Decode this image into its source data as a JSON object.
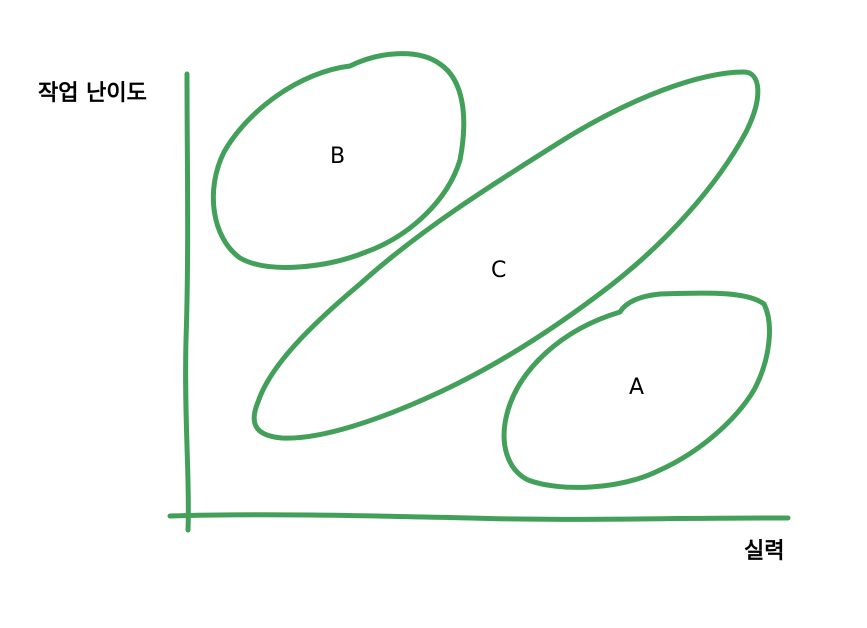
{
  "axes": {
    "y_label": "작업 난이도",
    "x_label": "실력"
  },
  "regions": [
    {
      "id": "B",
      "label": "B"
    },
    {
      "id": "C",
      "label": "C"
    },
    {
      "id": "A",
      "label": "A"
    }
  ],
  "colors": {
    "stroke": "#43a05a",
    "text": "#000000",
    "background": "#ffffff"
  }
}
